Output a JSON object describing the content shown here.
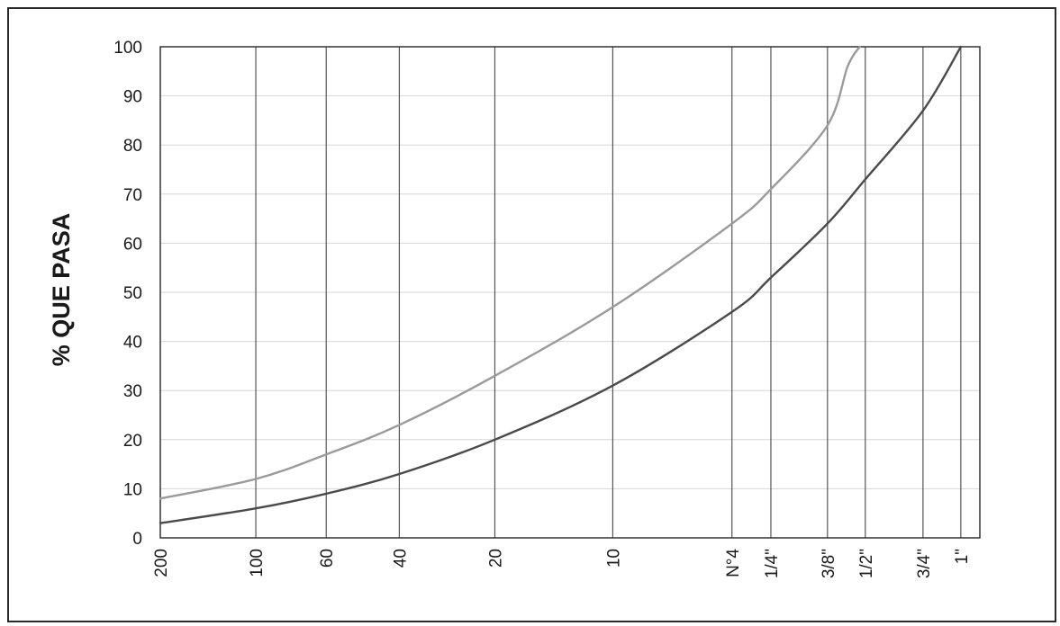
{
  "chart_data": {
    "type": "line",
    "title": "",
    "xlabel": "",
    "ylabel": "% QUE PASA",
    "ylim": [
      0,
      100
    ],
    "yticks": [
      "0",
      "10",
      "20",
      "30",
      "40",
      "50",
      "60",
      "70",
      "80",
      "90",
      "100"
    ],
    "x_unit": "mm",
    "x_scale": "log",
    "x_categories": [
      "200",
      "100",
      "60",
      "40",
      "20",
      "10",
      "N°4",
      "1/4\"",
      "3/8\"",
      "1/2\"",
      "3/4\"",
      "1\""
    ],
    "x_values_mm": [
      0.075,
      0.15,
      0.25,
      0.425,
      0.85,
      2.0,
      4.75,
      6.3,
      9.5,
      12.5,
      19.0,
      25.0
    ],
    "grid": {
      "x": true,
      "y": true
    },
    "series": [
      {
        "color": "#9a9a9a",
        "points": [
          [
            0.075,
            8
          ],
          [
            0.15,
            12
          ],
          [
            0.25,
            17
          ],
          [
            0.425,
            23
          ],
          [
            0.85,
            33
          ],
          [
            2.0,
            47
          ],
          [
            4.75,
            64
          ],
          [
            6.3,
            71
          ],
          [
            9.5,
            84
          ],
          [
            11.0,
            96
          ],
          [
            12.0,
            100
          ]
        ]
      },
      {
        "color": "#4a4a4a",
        "points": [
          [
            0.075,
            3
          ],
          [
            0.15,
            6
          ],
          [
            0.25,
            9
          ],
          [
            0.425,
            13
          ],
          [
            0.85,
            20
          ],
          [
            2.0,
            31
          ],
          [
            4.75,
            46
          ],
          [
            6.3,
            53
          ],
          [
            9.5,
            64
          ],
          [
            12.5,
            73
          ],
          [
            19.0,
            87
          ],
          [
            25.0,
            100
          ]
        ]
      }
    ]
  }
}
